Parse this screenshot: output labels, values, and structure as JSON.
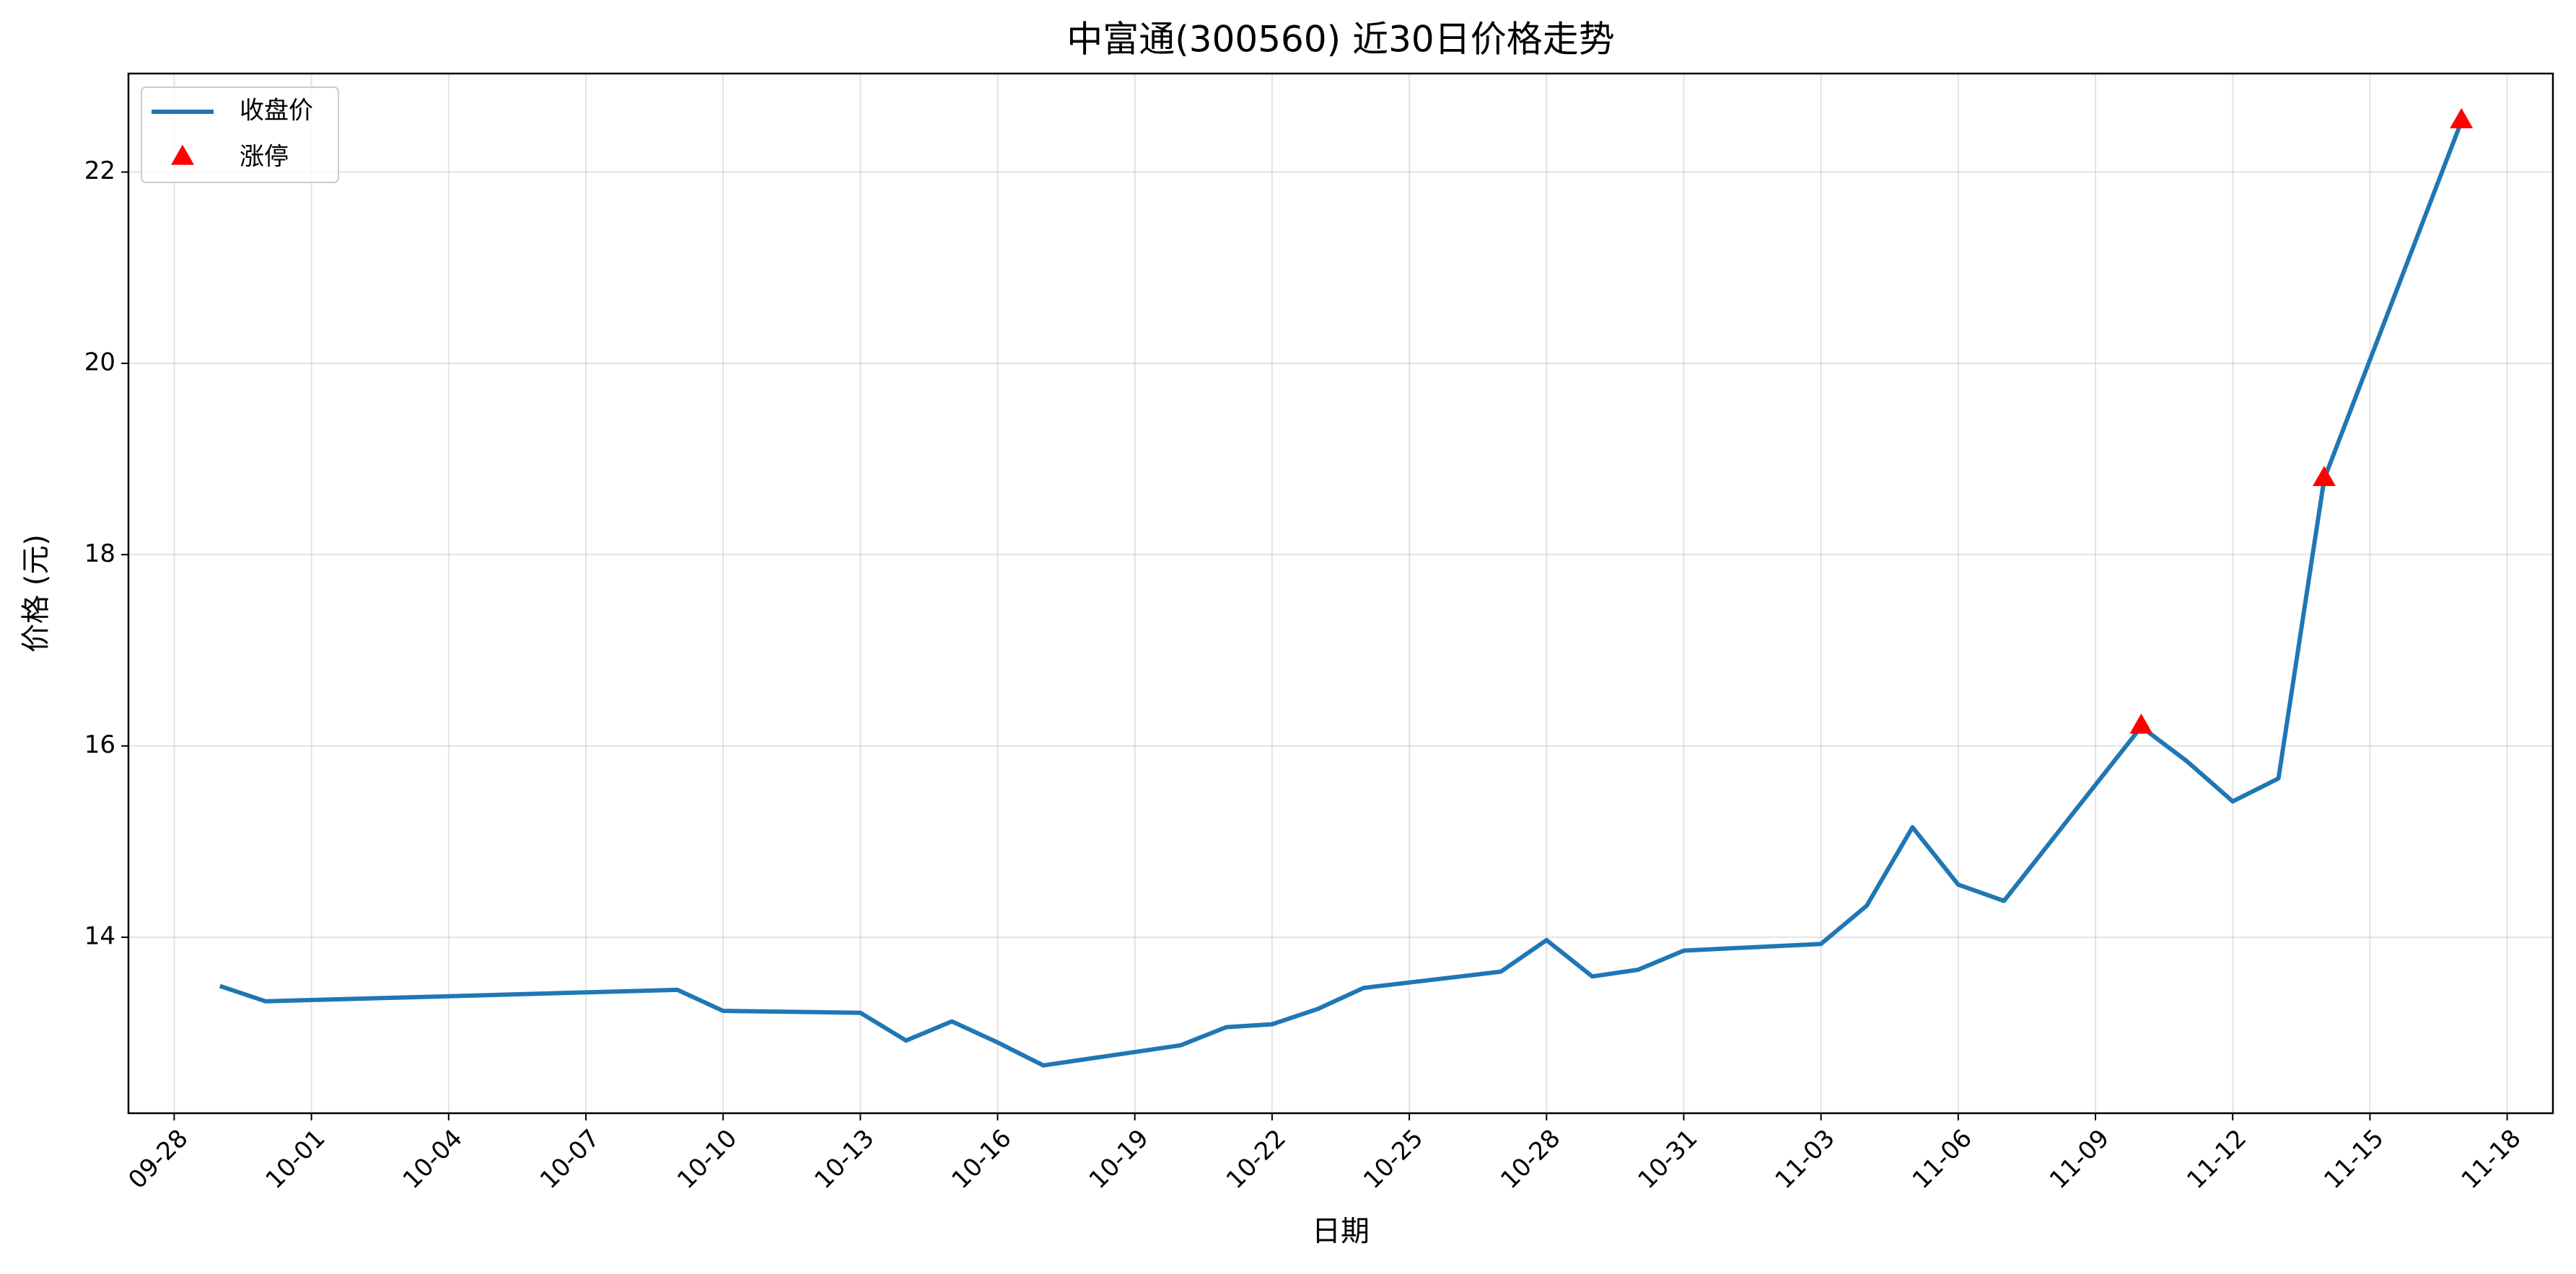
{
  "chart_data": {
    "type": "line",
    "title": "中富通(300560) 近30日价格走势",
    "xlabel": "日期",
    "ylabel": "价格 (元)",
    "x": [
      "09-29",
      "09-30",
      "10-09",
      "10-10",
      "10-13",
      "10-14",
      "10-15",
      "10-16",
      "10-17",
      "10-20",
      "10-21",
      "10-22",
      "10-23",
      "10-24",
      "10-27",
      "10-28",
      "10-29",
      "10-30",
      "10-31",
      "11-03",
      "11-04",
      "11-05",
      "11-06",
      "11-07",
      "11-10",
      "11-11",
      "11-12",
      "11-13",
      "11-14",
      "11-17"
    ],
    "series": [
      {
        "name": "收盘价",
        "color": "#1f77b4",
        "marker": "line",
        "values": [
          13.49,
          13.33,
          13.45,
          13.23,
          13.21,
          12.92,
          13.12,
          12.9,
          12.66,
          12.87,
          13.06,
          13.09,
          13.25,
          13.47,
          13.64,
          13.97,
          13.59,
          13.66,
          13.86,
          13.93,
          14.33,
          15.15,
          14.55,
          14.38,
          16.2,
          15.84,
          15.42,
          15.66,
          18.79,
          22.53
        ]
      },
      {
        "name": "涨停",
        "color": "#ff0000",
        "marker": "triangle",
        "x": [
          "11-10",
          "11-14",
          "11-17"
        ],
        "values": [
          16.2,
          18.79,
          22.53
        ]
      }
    ],
    "xlim": [
      "09-27",
      "11-19"
    ],
    "xticks": [
      "09-28",
      "10-01",
      "10-04",
      "10-07",
      "10-10",
      "10-13",
      "10-16",
      "10-19",
      "10-22",
      "10-25",
      "10-28",
      "10-31",
      "11-03",
      "11-06",
      "11-09",
      "11-12",
      "11-15",
      "11-18"
    ],
    "ylim": [
      12.16,
      23.03
    ],
    "yticks": [
      14,
      16,
      18,
      20,
      22
    ],
    "grid": true,
    "legend": "upper-left"
  }
}
